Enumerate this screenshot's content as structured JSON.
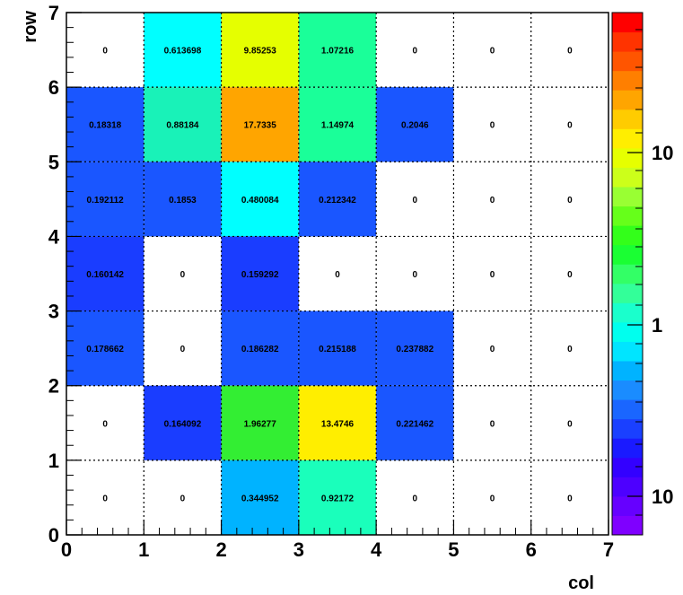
{
  "chart_data": {
    "type": "heatmap",
    "xlabel": "col",
    "ylabel": "row",
    "xlim": [
      0,
      7
    ],
    "ylim": [
      0,
      7
    ],
    "x_ticks": [
      "0",
      "1",
      "2",
      "3",
      "4",
      "5",
      "6",
      "7"
    ],
    "y_ticks": [
      "0",
      "1",
      "2",
      "3",
      "4",
      "5",
      "6",
      "7"
    ],
    "grid": true,
    "colorbar": {
      "scale": "log",
      "labels": [
        "10",
        "1",
        "10"
      ],
      "colors": [
        "#7f00ff",
        "#6600ff",
        "#4d00ff",
        "#3300ff",
        "#1a1aff",
        "#1a40ff",
        "#1a66ff",
        "#1a8cff",
        "#00b3ff",
        "#00e5ff",
        "#00ffee",
        "#1affcc",
        "#33ff99",
        "#33ff66",
        "#1aff33",
        "#33ff1a",
        "#66ff1a",
        "#99ff33",
        "#ccff1a",
        "#e6ff00",
        "#ffee00",
        "#ffcc00",
        "#ffa500",
        "#ff7f00",
        "#ff5500",
        "#ff3300",
        "#ff0000"
      ]
    },
    "rows": [
      {
        "row": 6,
        "labels": [
          "0",
          "0.613698",
          "9.85253",
          "1.07216",
          "0",
          "0",
          "0"
        ],
        "values": [
          0,
          0.613698,
          9.85253,
          1.07216,
          0,
          0,
          0
        ],
        "colors": [
          "",
          "#00ffff",
          "#e5ff00",
          "#1aff99",
          "",
          "",
          ""
        ]
      },
      {
        "row": 5,
        "labels": [
          "0.18318",
          "0.88184",
          "17.7335",
          "1.14974",
          "0.2046",
          "0",
          "0"
        ],
        "values": [
          0.18318,
          0.88184,
          17.7335,
          1.14974,
          0.2046,
          0,
          0
        ],
        "colors": [
          "#1a56ff",
          "#19f2b8",
          "#ffa500",
          "#1aff99",
          "#1a56ff",
          "",
          ""
        ]
      },
      {
        "row": 4,
        "labels": [
          "0.192112",
          "0.1853",
          "0.480084",
          "0.212342",
          "0",
          "0",
          "0"
        ],
        "values": [
          0.192112,
          0.1853,
          0.480084,
          0.212342,
          0,
          0,
          0
        ],
        "colors": [
          "#1a56ff",
          "#1a56ff",
          "#00ffff",
          "#1a56ff",
          "",
          "",
          ""
        ]
      },
      {
        "row": 3,
        "labels": [
          "0.160142",
          "0",
          "0.159292",
          "0",
          "0",
          "0",
          "0"
        ],
        "values": [
          0.160142,
          0,
          0.159292,
          0,
          0,
          0,
          0
        ],
        "colors": [
          "#1a3dff",
          "",
          "#1a3dff",
          "",
          "",
          "",
          ""
        ]
      },
      {
        "row": 2,
        "labels": [
          "0.178662",
          "0",
          "0.186282",
          "0.215188",
          "0.237882",
          "0",
          "0"
        ],
        "values": [
          0.178662,
          0,
          0.186282,
          0.215188,
          0.237882,
          0,
          0
        ],
        "colors": [
          "#1a56ff",
          "",
          "#1a56ff",
          "#1a56ff",
          "#1a56ff",
          "",
          ""
        ]
      },
      {
        "row": 1,
        "labels": [
          "0",
          "0.164092",
          "1.96277",
          "13.4746",
          "0.221462",
          "0",
          "0"
        ],
        "values": [
          0,
          0.164092,
          1.96277,
          13.4746,
          0.221462,
          0,
          0
        ],
        "colors": [
          "",
          "#1a3dff",
          "#33ee33",
          "#ffee00",
          "#1a56ff",
          "",
          ""
        ]
      },
      {
        "row": 0,
        "labels": [
          "0",
          "0",
          "0.344952",
          "0.92172",
          "0",
          "0",
          "0"
        ],
        "values": [
          0,
          0,
          0.344952,
          0.92172,
          0,
          0,
          0
        ],
        "colors": [
          "",
          "",
          "#00b3ff",
          "#1affbb",
          "",
          "",
          ""
        ]
      }
    ]
  }
}
